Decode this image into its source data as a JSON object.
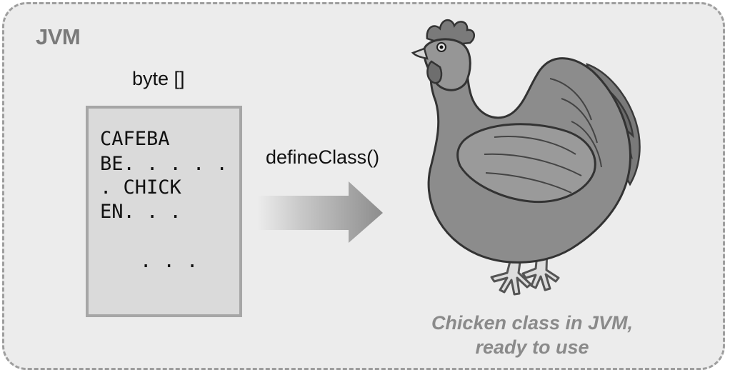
{
  "container": {
    "label": "JVM"
  },
  "byte_array": {
    "label": "byte []",
    "lines": [
      "CAFEBA",
      "BE. . . . .",
      ". CHICK",
      "EN. . .",
      ". . ."
    ]
  },
  "operation": {
    "label": "defineClass()"
  },
  "result": {
    "icon": "chicken-icon",
    "caption_lines": [
      "Chicken class in JVM,",
      "ready to use"
    ]
  },
  "colors": {
    "frame_fill": "#ececec",
    "frame_border": "#9e9e9e",
    "box_fill": "#dadada",
    "chicken_body": "#8c8c8c",
    "caption": "#8a8a8a"
  }
}
